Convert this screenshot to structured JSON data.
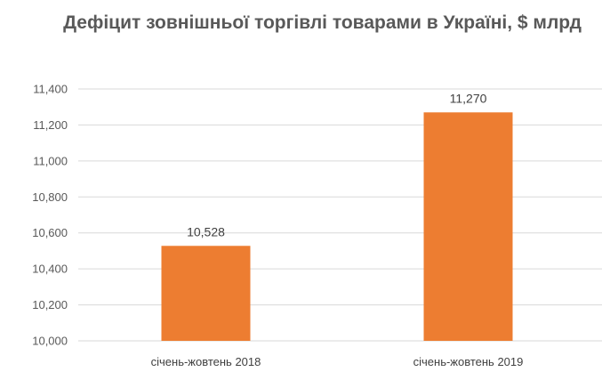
{
  "chart_data": {
    "type": "bar",
    "title": "Дефіцит зовнішньої торгівлі товарами в Україні, $ млрд",
    "categories": [
      "січень-жовтень 2018",
      "січень-жовтень 2019"
    ],
    "values": [
      10528,
      11270
    ],
    "value_labels": [
      "10,528",
      "11,270"
    ],
    "ylim": [
      10000,
      11400
    ],
    "yticks": [
      10000,
      10200,
      10400,
      10600,
      10800,
      11000,
      11200,
      11400
    ],
    "ytick_labels": [
      "10,000",
      "10,200",
      "10,400",
      "10,600",
      "10,800",
      "11,000",
      "11,200",
      "11,400"
    ],
    "xlabel": "",
    "ylabel": "",
    "grid": true,
    "legend": "none",
    "bar_color": "#ED7D31",
    "grid_color": "#D9D9D9"
  }
}
